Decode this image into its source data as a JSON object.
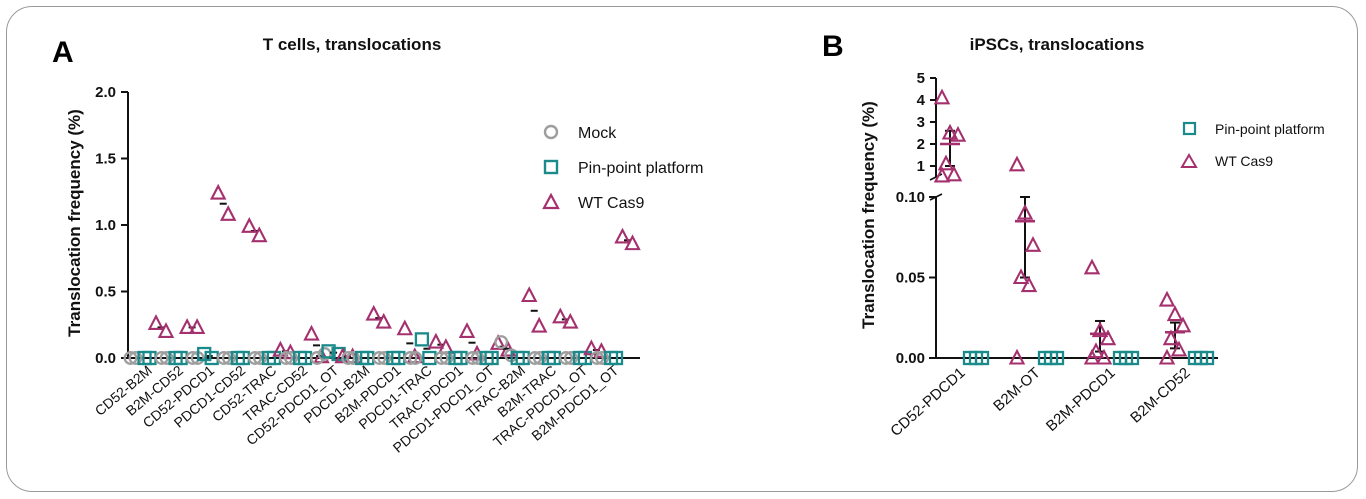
{
  "colors": {
    "mock": "#9e9e9e",
    "pinpoint": "#1a8a8a",
    "wtcas9": "#a5306e",
    "axis": "#111111"
  },
  "panelA": {
    "label": "A",
    "title": "T cells, translocations",
    "ylabel": "Translocation frequency (%)",
    "yticks": [
      "0.0",
      "0.5",
      "1.0",
      "1.5",
      "2.0"
    ],
    "legend": {
      "mock": "Mock",
      "pinpoint": "Pin-point platform",
      "wtcas9": "WT Cas9"
    }
  },
  "panelB": {
    "label": "B",
    "title": "iPSCs, translocations",
    "ylabel": "Translocation frequency (%)",
    "yticks_low": [
      "0.00",
      "0.05",
      "0.10"
    ],
    "yticks_high": [
      "1",
      "2",
      "3",
      "4",
      "5"
    ],
    "legend": {
      "pinpoint": "Pin-point platform",
      "wtcas9": "WT Cas9"
    }
  },
  "chart_data": [
    {
      "type": "scatter",
      "title": "T cells, translocations",
      "ylabel": "Translocation frequency (%)",
      "ylim": [
        0,
        2.0
      ],
      "legend_position": "top-right",
      "categories": [
        "CD52-B2M",
        "B2M-CD52",
        "CD52-PDCD1",
        "PDCD1-CD52",
        "CD52-TRAC",
        "TRAC-CD52",
        "CD52-PDCD1_OT",
        "PDCD1-B2M",
        "B2M-PDCD1",
        "PDCD1-TRAC",
        "TRAC-PDCD1",
        "PDCD1-PDCD1_OT",
        "TRAC-B2M",
        "B2M-TRAC",
        "TRAC-PDCD1_OT",
        "B2M-PDCD1_OT"
      ],
      "series": [
        {
          "name": "Mock",
          "marker": "circle",
          "values": [
            [
              0,
              0
            ],
            [
              0,
              0
            ],
            [
              0,
              0
            ],
            [
              0,
              0
            ],
            [
              0,
              0
            ],
            [
              0,
              0
            ],
            [
              0,
              0.03
            ],
            [
              0,
              0
            ],
            [
              0,
              0
            ],
            [
              0,
              0
            ],
            [
              0,
              0
            ],
            [
              0,
              0
            ],
            [
              0.12,
              0.02
            ],
            [
              0,
              0
            ],
            [
              0,
              0
            ],
            [
              0,
              0
            ]
          ]
        },
        {
          "name": "Pin-point platform",
          "marker": "square",
          "values": [
            [
              0,
              0
            ],
            [
              0,
              0
            ],
            [
              0.03,
              0
            ],
            [
              0,
              0
            ],
            [
              0,
              0
            ],
            [
              0,
              0
            ],
            [
              0.05,
              0.03
            ],
            [
              0,
              0
            ],
            [
              0,
              0
            ],
            [
              0.14,
              0
            ],
            [
              0,
              0
            ],
            [
              0,
              0
            ],
            [
              0,
              0
            ],
            [
              0,
              0
            ],
            [
              0,
              0
            ],
            [
              0,
              0
            ]
          ]
        },
        {
          "name": "WT Cas9",
          "marker": "triangle",
          "values": [
            [
              0.26,
              0.2
            ],
            [
              0.23,
              0.23
            ],
            [
              1.24,
              1.08
            ],
            [
              0.99,
              0.92
            ],
            [
              0.06,
              0.04
            ],
            [
              0.18,
              0.01
            ],
            [
              0.01,
              0.01
            ],
            [
              0.33,
              0.27
            ],
            [
              0.22,
              0.01
            ],
            [
              0.12,
              0.08
            ],
            [
              0.2,
              0.03
            ],
            [
              0.11,
              0.06
            ],
            [
              0.47,
              0.24
            ],
            [
              0.31,
              0.27
            ],
            [
              0.07,
              0.05
            ],
            [
              0.91,
              0.86
            ]
          ]
        }
      ],
      "means": {
        "Mock": [
          0,
          0,
          0,
          0,
          0,
          0,
          0.015,
          0,
          0,
          0,
          0,
          0,
          0.07,
          0,
          0,
          0
        ],
        "Pin-point platform": [
          0,
          0,
          0.015,
          0,
          0,
          0,
          0.04,
          0,
          0,
          0.07,
          0,
          0,
          0,
          0,
          0,
          0
        ],
        "WT Cas9": [
          0.23,
          0.23,
          1.16,
          0.955,
          0.05,
          0.095,
          0.01,
          0.3,
          0.11,
          0.1,
          0.115,
          0.085,
          0.355,
          0.29,
          0.06,
          0.885
        ]
      }
    },
    {
      "type": "scatter",
      "title": "iPSCs, translocations",
      "ylabel": "Translocation frequency (%)",
      "y_axis_break": {
        "low_range": [
          0,
          0.1
        ],
        "high_range": [
          0.5,
          5
        ]
      },
      "legend_position": "top-right",
      "categories": [
        "CD52-PDCD1",
        "B2M-OT",
        "B2M-PDCD1",
        "B2M-CD52"
      ],
      "series": [
        {
          "name": "Pin-point platform",
          "marker": "square",
          "values": [
            [
              0,
              0,
              0
            ],
            [
              0,
              0,
              0
            ],
            [
              0,
              0,
              0
            ],
            [
              0,
              0,
              0
            ]
          ]
        },
        {
          "name": "WT Cas9",
          "marker": "triangle",
          "values": [
            [
              4.1,
              2.5,
              2.4,
              1.1,
              0.6,
              0.55
            ],
            [
              0.12,
              0.09,
              0.07,
              0.05,
              0.045,
              0
            ],
            [
              0.056,
              0.017,
              0.012,
              0.004,
              0,
              0
            ],
            [
              0.036,
              0.027,
              0.02,
              0.012,
              0.005,
              0
            ]
          ]
        }
      ],
      "summary_WT_Cas9": [
        {
          "mean": 2.0,
          "low": 1.0,
          "high": 2.6
        },
        {
          "mean": 0.085,
          "low": 0.05,
          "high": 0.1
        },
        {
          "mean": 0.015,
          "low": 0.004,
          "high": 0.023
        },
        {
          "mean": 0.016,
          "low": 0.006,
          "high": 0.022
        }
      ]
    }
  ]
}
